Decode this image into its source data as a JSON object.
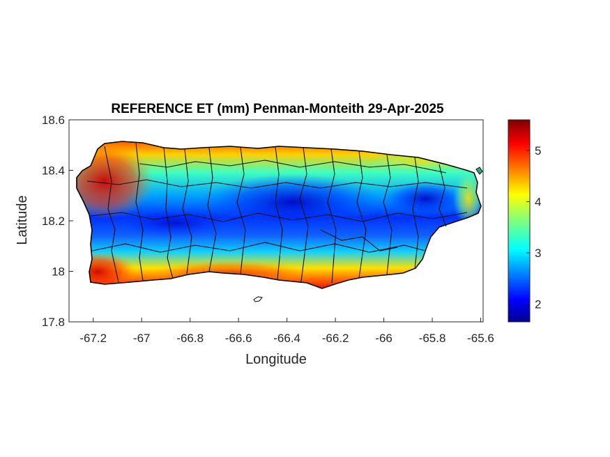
{
  "chart_data": {
    "type": "heatmap",
    "title": "REFERENCE ET (mm) Penman-Monteith 29-Apr-2025",
    "xlabel": "Longitude",
    "ylabel": "Latitude",
    "xlim": [
      -67.3,
      -65.59
    ],
    "ylim": [
      17.8,
      18.6
    ],
    "xticks": [
      -67.2,
      -67,
      -66.8,
      -66.6,
      -66.4,
      -66.2,
      -66,
      -65.8,
      -65.6
    ],
    "xtick_labels": [
      "-67.2",
      "-67",
      "-66.8",
      "-66.6",
      "-66.4",
      "-66.2",
      "-66",
      "-65.8",
      "-65.6"
    ],
    "yticks": [
      17.8,
      18,
      18.2,
      18.4,
      18.6
    ],
    "ytick_labels": [
      "17.8",
      "18",
      "18.2",
      "18.4",
      "18.6"
    ],
    "colorbar": {
      "colormap": "jet",
      "range": [
        1.65,
        5.6
      ],
      "ticks": [
        2,
        3,
        4,
        5
      ],
      "tick_labels": [
        "2",
        "3",
        "4",
        "5"
      ]
    },
    "grid": false,
    "description_values": {
      "north_coast": 4.0,
      "west_coast": 5.3,
      "south_coast": 5.0,
      "central_mountains": 2.0,
      "east_interior": 2.1,
      "east_coast": 3.8
    }
  }
}
